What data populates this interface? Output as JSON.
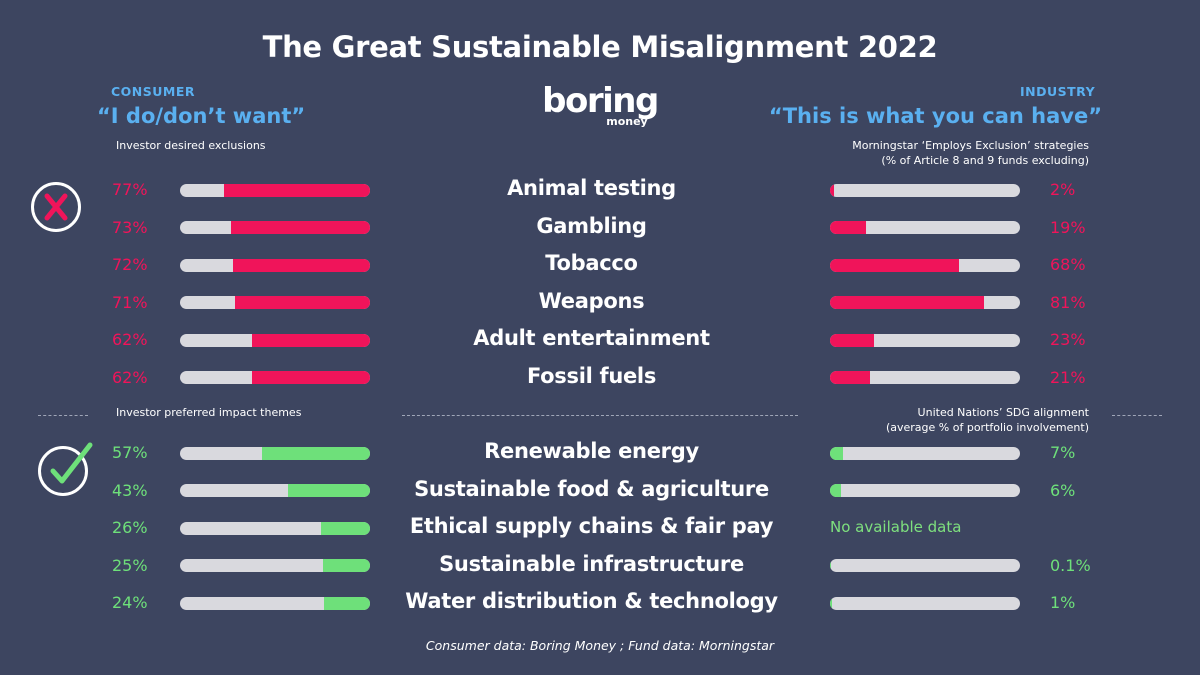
{
  "title": "The Great Sustainable Misalignment 2022",
  "logo": {
    "main": "boring",
    "sub": "money"
  },
  "consumer": {
    "label": "CONSUMER",
    "quote": "“I do/don’t want”",
    "exclusions_note": "Investor desired exclusions",
    "themes_note": "Investor preferred impact themes"
  },
  "industry": {
    "label": "INDUSTRY",
    "quote": "“This is what you can have”",
    "exclusions_note_1": "Morningstar ‘Employs Exclusion’ strategies",
    "exclusions_note_2": "(% of Article 8 and 9 funds excluding)",
    "themes_note_1": "United Nations’ SDG alignment",
    "themes_note_2": "(average % of portfolio involvement)"
  },
  "source": "Consumer data: Boring Money ; Fund data: Morningstar",
  "colors": {
    "background": "#3d4560",
    "exclusion": "#f0145a",
    "theme": "#6ee07a",
    "track": "#d9d9de",
    "accent": "#5ab0f0"
  },
  "icons": {
    "exclusion": "cross-icon",
    "theme": "check-icon"
  },
  "chart_data": [
    {
      "type": "bar",
      "orientation": "horizontal",
      "title": "Investor desired exclusions",
      "categories": [
        "Animal testing",
        "Gambling",
        "Tobacco",
        "Weapons",
        "Adult entertainment",
        "Fossil fuels"
      ],
      "values": [
        77,
        73,
        72,
        71,
        62,
        62
      ],
      "labels": [
        "77%",
        "73%",
        "72%",
        "71%",
        "62%",
        "62%"
      ],
      "xlim": [
        0,
        100
      ],
      "fill_from": "right"
    },
    {
      "type": "bar",
      "orientation": "horizontal",
      "title": "Morningstar ‘Employs Exclusion’ strategies",
      "categories": [
        "Animal testing",
        "Gambling",
        "Tobacco",
        "Weapons",
        "Adult entertainment",
        "Fossil fuels"
      ],
      "values": [
        2,
        19,
        68,
        81,
        23,
        21
      ],
      "labels": [
        "2%",
        "19%",
        "68%",
        "81%",
        "23%",
        "21%"
      ],
      "xlim": [
        0,
        100
      ],
      "fill_from": "left"
    },
    {
      "type": "bar",
      "orientation": "horizontal",
      "title": "Investor preferred impact themes",
      "categories": [
        "Renewable energy",
        "Sustainable food & agriculture",
        "Ethical supply chains & fair pay",
        "Sustainable infrastructure",
        "Water distribution & technology"
      ],
      "values": [
        57,
        43,
        26,
        25,
        24
      ],
      "labels": [
        "57%",
        "43%",
        "26%",
        "25%",
        "24%"
      ],
      "xlim": [
        0,
        100
      ],
      "fill_from": "right"
    },
    {
      "type": "bar",
      "orientation": "horizontal",
      "title": "United Nations’ SDG alignment",
      "categories": [
        "Renewable energy",
        "Sustainable food & agriculture",
        "Ethical supply chains & fair pay",
        "Sustainable infrastructure",
        "Water distribution & technology"
      ],
      "values": [
        7,
        6,
        null,
        0.1,
        1
      ],
      "labels": [
        "7%",
        "6%",
        "No available data",
        "0.1%",
        "1%"
      ],
      "xlim": [
        0,
        100
      ],
      "fill_from": "left"
    }
  ]
}
